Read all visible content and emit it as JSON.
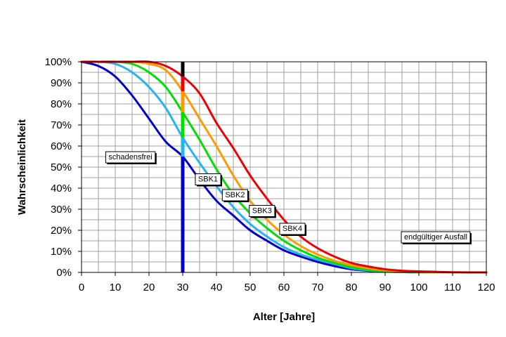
{
  "chart_data": {
    "type": "line",
    "title": "",
    "xlabel": "Alter [Jahre]",
    "ylabel": "Wahrscheinlichkeit",
    "xlim": [
      0,
      120
    ],
    "ylim": [
      0,
      100
    ],
    "x_ticks": [
      0,
      10,
      20,
      30,
      40,
      50,
      60,
      70,
      80,
      90,
      100,
      110,
      120
    ],
    "y_ticks": [
      "0%",
      "10%",
      "20%",
      "30%",
      "40%",
      "50%",
      "60%",
      "70%",
      "80%",
      "90%",
      "100%"
    ],
    "grid": true,
    "x": [
      0,
      5,
      10,
      15,
      20,
      25,
      30,
      35,
      40,
      45,
      50,
      55,
      60,
      65,
      70,
      75,
      80,
      85,
      90,
      95,
      100,
      105,
      110,
      115,
      120
    ],
    "series": [
      {
        "name": "schadensfrei → SBK1",
        "color": "#0000cc",
        "values": [
          100,
          98,
          93,
          84,
          73,
          62,
          55,
          44,
          34,
          27,
          20,
          15,
          10.5,
          7.5,
          5,
          3,
          1.5,
          0.8,
          0.4,
          0.2,
          0,
          0,
          0,
          0,
          0
        ]
      },
      {
        "name": "SBK1 → SBK2",
        "color": "#22b6f0",
        "values": [
          100,
          100,
          99,
          95,
          88,
          78,
          64,
          52,
          41,
          31,
          23,
          17,
          12,
          8.5,
          6,
          4,
          2,
          1,
          0.5,
          0.2,
          0,
          0,
          0,
          0,
          0
        ]
      },
      {
        "name": "SBK2 → SBK3",
        "color": "#00e000",
        "values": [
          100,
          100,
          100,
          99,
          95,
          88,
          76,
          63,
          49,
          37,
          28,
          21,
          15,
          10.5,
          7,
          4.5,
          2.5,
          1.3,
          0.6,
          0.3,
          0.1,
          0,
          0,
          0,
          0
        ]
      },
      {
        "name": "SBK3 → SBK4",
        "color": "#ff9900",
        "values": [
          100,
          100,
          100,
          100,
          99,
          96,
          86,
          73,
          60,
          46,
          34,
          25,
          18,
          12.5,
          8.5,
          5.5,
          3.5,
          2,
          1,
          0.5,
          0.2,
          0.1,
          0,
          0,
          0
        ]
      },
      {
        "name": "SBK4 → endgültiger Ausfall",
        "color": "#ee0000",
        "values": [
          100,
          100,
          100,
          100,
          100,
          98,
          93,
          85,
          71,
          59,
          46,
          35,
          25,
          17,
          11.5,
          7.5,
          4.5,
          2.8,
          1.5,
          0.8,
          0.5,
          0.3,
          0.1,
          0,
          0
        ]
      }
    ],
    "marker_line": {
      "x": 30
    },
    "annotations": [
      {
        "text": "schadensfrei",
        "x": 14.5,
        "y": 55
      },
      {
        "text": "SBK1",
        "x": 37.5,
        "y": 44.5
      },
      {
        "text": "SBK2",
        "x": 45.5,
        "y": 37
      },
      {
        "text": "SBK3",
        "x": 53.5,
        "y": 29.5
      },
      {
        "text": "SBK4",
        "x": 62.5,
        "y": 21
      },
      {
        "text": "endgültiger Ausfall",
        "x": 105,
        "y": 17
      }
    ]
  }
}
